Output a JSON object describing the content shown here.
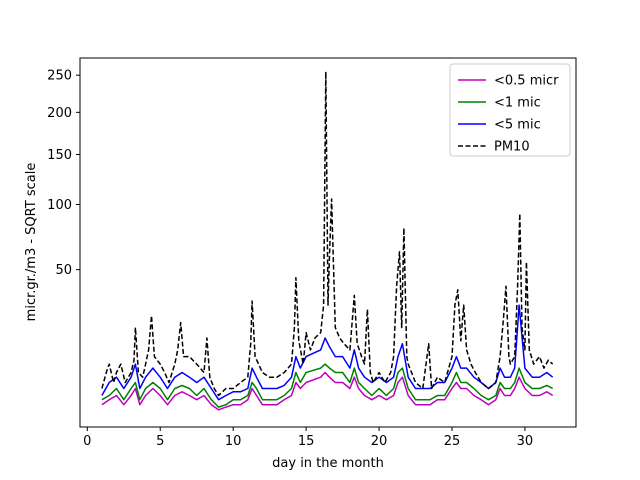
{
  "chart_data": {
    "type": "line",
    "title": "",
    "xlabel": "day in the month",
    "ylabel": "micr.gr./m3 - SQRT scale",
    "y_scale": "sqrt",
    "xlim": [
      -0.5,
      33.5
    ],
    "ylim": [
      0,
      275
    ],
    "x_ticks": [
      0,
      5,
      10,
      15,
      20,
      25,
      30
    ],
    "y_ticks": [
      50,
      100,
      150,
      200,
      250
    ],
    "grid": false,
    "legend_position": "top-right",
    "series": [
      {
        "name": "<0.5 micr",
        "color": "#bf00bf",
        "style": "solid",
        "points": [
          [
            1,
            1
          ],
          [
            1.5,
            1.5
          ],
          [
            2,
            2
          ],
          [
            2.5,
            1
          ],
          [
            3,
            2
          ],
          [
            3.3,
            3
          ],
          [
            3.6,
            1
          ],
          [
            4,
            2
          ],
          [
            4.5,
            3
          ],
          [
            5,
            2
          ],
          [
            5.5,
            1
          ],
          [
            6,
            2
          ],
          [
            6.5,
            2.5
          ],
          [
            7,
            2
          ],
          [
            7.5,
            1.5
          ],
          [
            8,
            2
          ],
          [
            8.5,
            1
          ],
          [
            9,
            0.6
          ],
          [
            9.5,
            0.8
          ],
          [
            10,
            1
          ],
          [
            10.5,
            1
          ],
          [
            11,
            1.5
          ],
          [
            11.3,
            3
          ],
          [
            11.6,
            2
          ],
          [
            12,
            1
          ],
          [
            12.5,
            1
          ],
          [
            13,
            1
          ],
          [
            13.5,
            1.5
          ],
          [
            14,
            2
          ],
          [
            14.3,
            4
          ],
          [
            14.6,
            3
          ],
          [
            15,
            4
          ],
          [
            15.5,
            4.5
          ],
          [
            16,
            5
          ],
          [
            16.3,
            6
          ],
          [
            16.6,
            5
          ],
          [
            17,
            4
          ],
          [
            17.5,
            4
          ],
          [
            18,
            3
          ],
          [
            18.3,
            5
          ],
          [
            18.6,
            3
          ],
          [
            19,
            2
          ],
          [
            19.5,
            1.5
          ],
          [
            20,
            2
          ],
          [
            20.5,
            1.5
          ],
          [
            21,
            2
          ],
          [
            21.3,
            4
          ],
          [
            21.6,
            5
          ],
          [
            22,
            2
          ],
          [
            22.5,
            1
          ],
          [
            23,
            1
          ],
          [
            23.5,
            1
          ],
          [
            24,
            1.5
          ],
          [
            24.5,
            1.5
          ],
          [
            25,
            3
          ],
          [
            25.3,
            4
          ],
          [
            25.6,
            3
          ],
          [
            26,
            3
          ],
          [
            26.5,
            2
          ],
          [
            27,
            1.5
          ],
          [
            27.5,
            1
          ],
          [
            28,
            1.5
          ],
          [
            28.3,
            3
          ],
          [
            28.6,
            2
          ],
          [
            29,
            2
          ],
          [
            29.3,
            3
          ],
          [
            29.6,
            5
          ],
          [
            30,
            3
          ],
          [
            30.5,
            2
          ],
          [
            31,
            2
          ],
          [
            31.5,
            2.5
          ],
          [
            31.9,
            2
          ]
        ]
      },
      {
        "name": "<1 mic",
        "color": "#008000",
        "style": "solid",
        "points": [
          [
            1,
            1.5
          ],
          [
            1.5,
            2
          ],
          [
            2,
            3
          ],
          [
            2.5,
            1.5
          ],
          [
            3,
            3
          ],
          [
            3.3,
            4
          ],
          [
            3.6,
            1.5
          ],
          [
            4,
            3
          ],
          [
            4.5,
            4
          ],
          [
            5,
            3
          ],
          [
            5.5,
            1.5
          ],
          [
            6,
            3
          ],
          [
            6.5,
            3.5
          ],
          [
            7,
            3
          ],
          [
            7.5,
            2
          ],
          [
            8,
            3
          ],
          [
            8.5,
            1.5
          ],
          [
            9,
            0.8
          ],
          [
            9.5,
            1
          ],
          [
            10,
            1.5
          ],
          [
            10.5,
            1.5
          ],
          [
            11,
            2
          ],
          [
            11.3,
            4
          ],
          [
            11.6,
            3
          ],
          [
            12,
            1.5
          ],
          [
            12.5,
            1.5
          ],
          [
            13,
            1.5
          ],
          [
            13.5,
            2
          ],
          [
            14,
            3
          ],
          [
            14.3,
            6
          ],
          [
            14.6,
            4
          ],
          [
            15,
            6
          ],
          [
            15.5,
            6.5
          ],
          [
            16,
            7
          ],
          [
            16.3,
            8
          ],
          [
            16.6,
            7
          ],
          [
            17,
            6
          ],
          [
            17.5,
            6
          ],
          [
            18,
            4
          ],
          [
            18.3,
            7
          ],
          [
            18.6,
            4
          ],
          [
            19,
            3
          ],
          [
            19.5,
            2
          ],
          [
            20,
            3
          ],
          [
            20.5,
            2
          ],
          [
            21,
            3
          ],
          [
            21.3,
            6
          ],
          [
            21.6,
            7
          ],
          [
            22,
            3
          ],
          [
            22.5,
            1.5
          ],
          [
            23,
            1.5
          ],
          [
            23.5,
            1.5
          ],
          [
            24,
            2
          ],
          [
            24.5,
            2
          ],
          [
            25,
            4
          ],
          [
            25.3,
            6
          ],
          [
            25.6,
            4
          ],
          [
            26,
            4
          ],
          [
            26.5,
            3
          ],
          [
            27,
            2
          ],
          [
            27.5,
            1.5
          ],
          [
            28,
            2
          ],
          [
            28.3,
            4
          ],
          [
            28.6,
            3
          ],
          [
            29,
            3
          ],
          [
            29.3,
            4
          ],
          [
            29.6,
            7
          ],
          [
            30,
            4
          ],
          [
            30.5,
            3
          ],
          [
            31,
            3
          ],
          [
            31.5,
            3.5
          ],
          [
            31.9,
            3
          ]
        ]
      },
      {
        "name": "<5 mic",
        "color": "#0000ff",
        "style": "solid",
        "points": [
          [
            1,
            2
          ],
          [
            1.5,
            4
          ],
          [
            2,
            5
          ],
          [
            2.5,
            3
          ],
          [
            3,
            5
          ],
          [
            3.3,
            8
          ],
          [
            3.6,
            3
          ],
          [
            4,
            5
          ],
          [
            4.5,
            7
          ],
          [
            5,
            5
          ],
          [
            5.5,
            3
          ],
          [
            6,
            5
          ],
          [
            6.5,
            6
          ],
          [
            7,
            5
          ],
          [
            7.5,
            4
          ],
          [
            8,
            5
          ],
          [
            8.5,
            3
          ],
          [
            9,
            1.5
          ],
          [
            9.5,
            2
          ],
          [
            10,
            2.5
          ],
          [
            10.5,
            2.5
          ],
          [
            11,
            3
          ],
          [
            11.3,
            7
          ],
          [
            11.6,
            5
          ],
          [
            12,
            3
          ],
          [
            12.5,
            3
          ],
          [
            13,
            3
          ],
          [
            13.5,
            3.5
          ],
          [
            14,
            5
          ],
          [
            14.3,
            10
          ],
          [
            14.6,
            7
          ],
          [
            15,
            10
          ],
          [
            15.5,
            11
          ],
          [
            16,
            12
          ],
          [
            16.3,
            16
          ],
          [
            16.6,
            13
          ],
          [
            17,
            10
          ],
          [
            17.5,
            10
          ],
          [
            18,
            7
          ],
          [
            18.3,
            12
          ],
          [
            18.6,
            7
          ],
          [
            19,
            5
          ],
          [
            19.5,
            4
          ],
          [
            20,
            5
          ],
          [
            20.5,
            4
          ],
          [
            21,
            5
          ],
          [
            21.3,
            10
          ],
          [
            21.6,
            14
          ],
          [
            22,
            5
          ],
          [
            22.5,
            3
          ],
          [
            23,
            3
          ],
          [
            23.5,
            3
          ],
          [
            24,
            4
          ],
          [
            24.5,
            4
          ],
          [
            25,
            7
          ],
          [
            25.3,
            10
          ],
          [
            25.6,
            7
          ],
          [
            26,
            7
          ],
          [
            26.5,
            5
          ],
          [
            27,
            4
          ],
          [
            27.5,
            3
          ],
          [
            28,
            4
          ],
          [
            28.3,
            7
          ],
          [
            28.6,
            5
          ],
          [
            29,
            5
          ],
          [
            29.3,
            7
          ],
          [
            29.6,
            30
          ],
          [
            30,
            7
          ],
          [
            30.5,
            5
          ],
          [
            31,
            5
          ],
          [
            31.5,
            6
          ],
          [
            31.9,
            5
          ]
        ]
      },
      {
        "name": "PM10",
        "color": "#000000",
        "style": "dashed",
        "points": [
          [
            1,
            3
          ],
          [
            1.3,
            6
          ],
          [
            1.5,
            8
          ],
          [
            1.8,
            4
          ],
          [
            2,
            6
          ],
          [
            2.3,
            8
          ],
          [
            2.6,
            4
          ],
          [
            3,
            6
          ],
          [
            3.2,
            9
          ],
          [
            3.3,
            20
          ],
          [
            3.5,
            6
          ],
          [
            3.8,
            5
          ],
          [
            4,
            8
          ],
          [
            4.2,
            12
          ],
          [
            4.4,
            25
          ],
          [
            4.6,
            10
          ],
          [
            5,
            8
          ],
          [
            5.3,
            6
          ],
          [
            5.6,
            4
          ],
          [
            6,
            8
          ],
          [
            6.2,
            12
          ],
          [
            6.4,
            22
          ],
          [
            6.6,
            10
          ],
          [
            7,
            10
          ],
          [
            7.5,
            8
          ],
          [
            8,
            6
          ],
          [
            8.2,
            16
          ],
          [
            8.4,
            5
          ],
          [
            8.7,
            3
          ],
          [
            9,
            2
          ],
          [
            9.5,
            3
          ],
          [
            10,
            3
          ],
          [
            10.5,
            4
          ],
          [
            11,
            5
          ],
          [
            11.2,
            14
          ],
          [
            11.3,
            32
          ],
          [
            11.5,
            10
          ],
          [
            12,
            6
          ],
          [
            12.5,
            5
          ],
          [
            13,
            5
          ],
          [
            13.5,
            6
          ],
          [
            14,
            8
          ],
          [
            14.2,
            20
          ],
          [
            14.3,
            45
          ],
          [
            14.5,
            15
          ],
          [
            14.8,
            8
          ],
          [
            15,
            18
          ],
          [
            15.3,
            12
          ],
          [
            15.6,
            16
          ],
          [
            16,
            18
          ],
          [
            16.2,
            30
          ],
          [
            16.35,
            255
          ],
          [
            16.5,
            30
          ],
          [
            16.6,
            60
          ],
          [
            16.75,
            105
          ],
          [
            16.85,
            62
          ],
          [
            17,
            20
          ],
          [
            17.3,
            16
          ],
          [
            17.6,
            14
          ],
          [
            18,
            12
          ],
          [
            18.3,
            35
          ],
          [
            18.5,
            14
          ],
          [
            18.8,
            10
          ],
          [
            19,
            8
          ],
          [
            19.2,
            28
          ],
          [
            19.4,
            6
          ],
          [
            19.6,
            4
          ],
          [
            20,
            6
          ],
          [
            20.4,
            4
          ],
          [
            20.8,
            6
          ],
          [
            21,
            10
          ],
          [
            21.2,
            40
          ],
          [
            21.4,
            62
          ],
          [
            21.55,
            20
          ],
          [
            21.7,
            80
          ],
          [
            21.9,
            10
          ],
          [
            22,
            8
          ],
          [
            22.5,
            4
          ],
          [
            23,
            3
          ],
          [
            23.4,
            14
          ],
          [
            23.6,
            3
          ],
          [
            24,
            5
          ],
          [
            24.5,
            4
          ],
          [
            25,
            10
          ],
          [
            25.2,
            30
          ],
          [
            25.4,
            38
          ],
          [
            25.6,
            15
          ],
          [
            25.8,
            30
          ],
          [
            26,
            12
          ],
          [
            26.3,
            8
          ],
          [
            26.6,
            6
          ],
          [
            27,
            4
          ],
          [
            27.5,
            3
          ],
          [
            28,
            4
          ],
          [
            28.3,
            10
          ],
          [
            28.5,
            22
          ],
          [
            28.7,
            40
          ],
          [
            28.9,
            10
          ],
          [
            29,
            8
          ],
          [
            29.3,
            10
          ],
          [
            29.5,
            40
          ],
          [
            29.65,
            92
          ],
          [
            29.8,
            20
          ],
          [
            30,
            12
          ],
          [
            30.1,
            55
          ],
          [
            30.3,
            12
          ],
          [
            30.6,
            8
          ],
          [
            31,
            10
          ],
          [
            31.3,
            7
          ],
          [
            31.6,
            9
          ],
          [
            31.9,
            8
          ]
        ]
      }
    ]
  }
}
